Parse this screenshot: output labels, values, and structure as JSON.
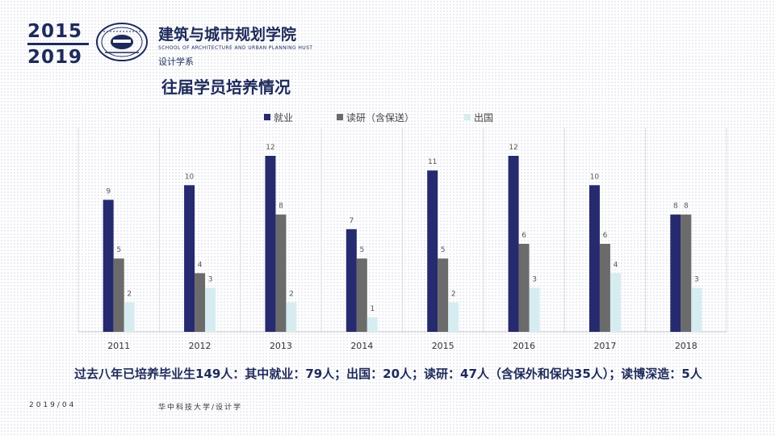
{
  "header": {
    "year_top": "2015",
    "year_bottom": "2019",
    "school_cn": "建筑与城市规划学院",
    "school_en": "SCHOOL OF ARCHITECTURE AND URBAN PLANNING HUST",
    "department": "设计学系",
    "page_title": "往届学员培养情况"
  },
  "colors": {
    "navy": "#262a6e",
    "gray": "#6b6b6b",
    "lightblue": "#d6ecf0",
    "text": "#1e2a5a"
  },
  "chart_data": {
    "type": "bar",
    "categories": [
      "2011",
      "2012",
      "2013",
      "2014",
      "2015",
      "2016",
      "2017",
      "2018"
    ],
    "series": [
      {
        "name": "就业",
        "values": [
          9,
          10,
          12,
          7,
          11,
          12,
          10,
          8
        ],
        "color": "#262a6e"
      },
      {
        "name": "读研（含保送）",
        "values": [
          5,
          4,
          8,
          5,
          5,
          6,
          6,
          8
        ],
        "color": "#6b6b6b"
      },
      {
        "name": "出国",
        "values": [
          2,
          3,
          2,
          1,
          2,
          3,
          4,
          3
        ],
        "color": "#d6ecf0"
      }
    ],
    "ylim": [
      0,
      12
    ],
    "legend": "top-center",
    "grid": "vertical category separators",
    "data_labels": true
  },
  "summary": "过去八年已培养毕业生149人：其中就业：79人；出国：20人；读研：47人（含保外和保内35人）；读博深造：5人",
  "footer": {
    "date": "2019/04",
    "school": "华中科技大学/设计学"
  }
}
